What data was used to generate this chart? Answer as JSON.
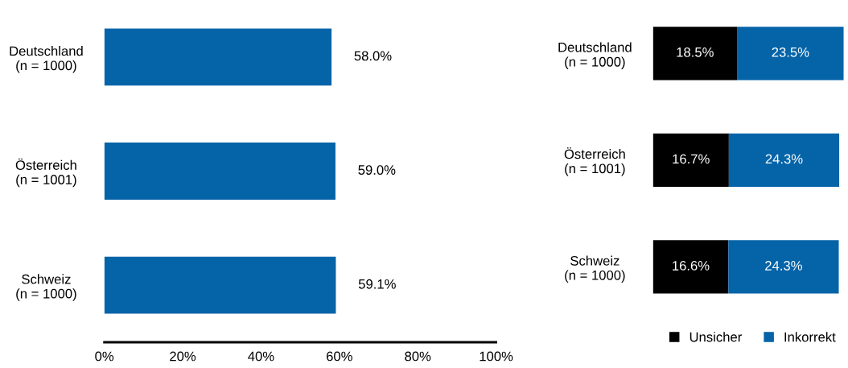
{
  "chart_data": [
    {
      "type": "bar",
      "orientation": "horizontal",
      "categories": [
        "Deutschland\n(n = 1000)",
        "Österreich\n(n = 1001)",
        "Schweiz\n(n = 1000)"
      ],
      "series": [
        {
          "color": "#0563a8",
          "values": [
            58.0,
            59.0,
            59.1
          ],
          "value_labels": [
            "58.0%",
            "59.0%",
            "59.1%"
          ]
        }
      ],
      "xlim": [
        0,
        100
      ],
      "xticks": [
        {
          "value": 0,
          "label": "0%"
        },
        {
          "value": 20,
          "label": "20%"
        },
        {
          "value": 40,
          "label": "40%"
        },
        {
          "value": 60,
          "label": "60%"
        },
        {
          "value": 80,
          "label": "80%"
        },
        {
          "value": 100,
          "label": "100%"
        }
      ],
      "grid": false,
      "legend": false
    },
    {
      "type": "bar",
      "orientation": "horizontal",
      "stacked": true,
      "categories": [
        "Deutschland\n(n = 1000)",
        "Österreich\n(n = 1001)",
        "Schweiz\n(n = 1000)"
      ],
      "series": [
        {
          "name": "Unsicher",
          "color": "#000000",
          "values": [
            18.5,
            16.7,
            16.6
          ],
          "value_labels": [
            "18.5%",
            "16.7%",
            "16.6%"
          ]
        },
        {
          "name": "Inkorrekt",
          "color": "#0563a8",
          "values": [
            23.5,
            24.3,
            24.3
          ],
          "value_labels": [
            "23.5%",
            "24.3%",
            "24.3%"
          ]
        }
      ],
      "tick_labels": "y",
      "grid": false,
      "legend": "bottom"
    }
  ]
}
